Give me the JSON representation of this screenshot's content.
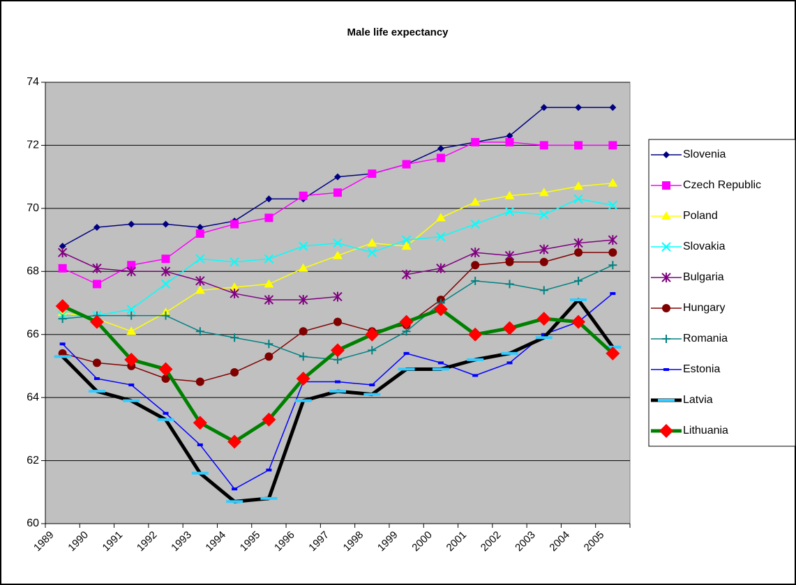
{
  "chart_data": {
    "type": "line",
    "title": "Male life expectancy",
    "categories": [
      "1989",
      "1990",
      "1991",
      "1992",
      "1993",
      "1994",
      "1995",
      "1996",
      "1997",
      "1998",
      "1999",
      "2000",
      "2001",
      "2002",
      "2003",
      "2004",
      "2005"
    ],
    "ylim": [
      60,
      74
    ],
    "yticks": [
      60,
      62,
      64,
      66,
      68,
      70,
      72,
      74
    ],
    "grid": true,
    "legend": "right",
    "series": [
      {
        "name": "Slovenia",
        "color": "#000080",
        "marker": "diamond",
        "marker_color": "#000080",
        "values": [
          68.8,
          69.4,
          69.5,
          69.5,
          69.4,
          69.6,
          70.3,
          70.3,
          71.0,
          71.1,
          71.4,
          71.9,
          72.1,
          72.3,
          73.2,
          73.2,
          73.2
        ]
      },
      {
        "name": "Czech Republic",
        "color": "#ff00ff",
        "marker": "square",
        "marker_color": "#ff00ff",
        "values": [
          68.1,
          67.6,
          68.2,
          68.4,
          69.2,
          69.5,
          69.7,
          70.4,
          70.5,
          71.1,
          71.4,
          71.6,
          72.1,
          72.1,
          72.0,
          72.0,
          72.0
        ]
      },
      {
        "name": "Poland",
        "color": "#ffff00",
        "marker": "triangle",
        "marker_color": "#ffff00",
        "values": [
          66.7,
          66.5,
          66.1,
          66.7,
          67.4,
          67.5,
          67.6,
          68.1,
          68.5,
          68.9,
          68.8,
          69.7,
          70.2,
          70.4,
          70.5,
          70.7,
          70.8
        ]
      },
      {
        "name": "Slovakia",
        "color": "#00ffff",
        "marker": "x",
        "marker_color": "#00ffff",
        "values": [
          66.6,
          66.6,
          66.8,
          67.6,
          68.4,
          68.3,
          68.4,
          68.8,
          68.9,
          68.6,
          69.0,
          69.1,
          69.5,
          69.9,
          69.8,
          70.3,
          70.1
        ]
      },
      {
        "name": "Bulgaria",
        "color": "#800080",
        "marker": "star",
        "marker_color": "#800080",
        "values": [
          68.6,
          68.1,
          68.0,
          68.0,
          67.7,
          67.3,
          67.1,
          67.1,
          67.2,
          null,
          67.9,
          68.1,
          68.6,
          68.5,
          68.7,
          68.9,
          69.0
        ]
      },
      {
        "name": "Hungary",
        "color": "#800000",
        "marker": "circle",
        "marker_color": "#800000",
        "values": [
          65.4,
          65.1,
          65.0,
          64.6,
          64.5,
          64.8,
          65.3,
          66.1,
          66.4,
          66.1,
          66.3,
          67.1,
          68.2,
          68.3,
          68.3,
          68.6,
          68.6
        ]
      },
      {
        "name": "Romania",
        "color": "#008080",
        "marker": "plus",
        "marker_color": "#008080",
        "values": [
          66.5,
          66.6,
          66.6,
          66.6,
          66.1,
          65.9,
          65.7,
          65.3,
          65.2,
          65.5,
          66.1,
          67.0,
          67.7,
          67.6,
          67.4,
          67.7,
          68.2
        ]
      },
      {
        "name": "Estonia",
        "color": "#0000ff",
        "marker": "dash",
        "marker_color": "#0000ff",
        "values": [
          65.7,
          64.6,
          64.4,
          63.5,
          62.5,
          61.1,
          61.7,
          64.5,
          64.5,
          64.4,
          65.4,
          65.1,
          64.7,
          65.1,
          66.0,
          66.4,
          67.3
        ]
      },
      {
        "name": "Latvia",
        "color": "#000000",
        "marker": "dash",
        "marker_color": "#33ccff",
        "values": [
          65.3,
          64.2,
          63.9,
          63.3,
          61.6,
          60.7,
          60.8,
          63.9,
          64.2,
          64.1,
          64.9,
          64.9,
          65.2,
          65.4,
          65.9,
          67.1,
          65.6
        ]
      },
      {
        "name": "Lithuania",
        "color": "#008000",
        "marker": "diamond",
        "marker_color": "#ff0000",
        "values": [
          66.9,
          66.4,
          65.2,
          64.9,
          63.2,
          62.6,
          63.3,
          64.6,
          65.5,
          66.0,
          66.4,
          66.8,
          66.0,
          66.2,
          66.5,
          66.4,
          65.4
        ]
      }
    ]
  }
}
